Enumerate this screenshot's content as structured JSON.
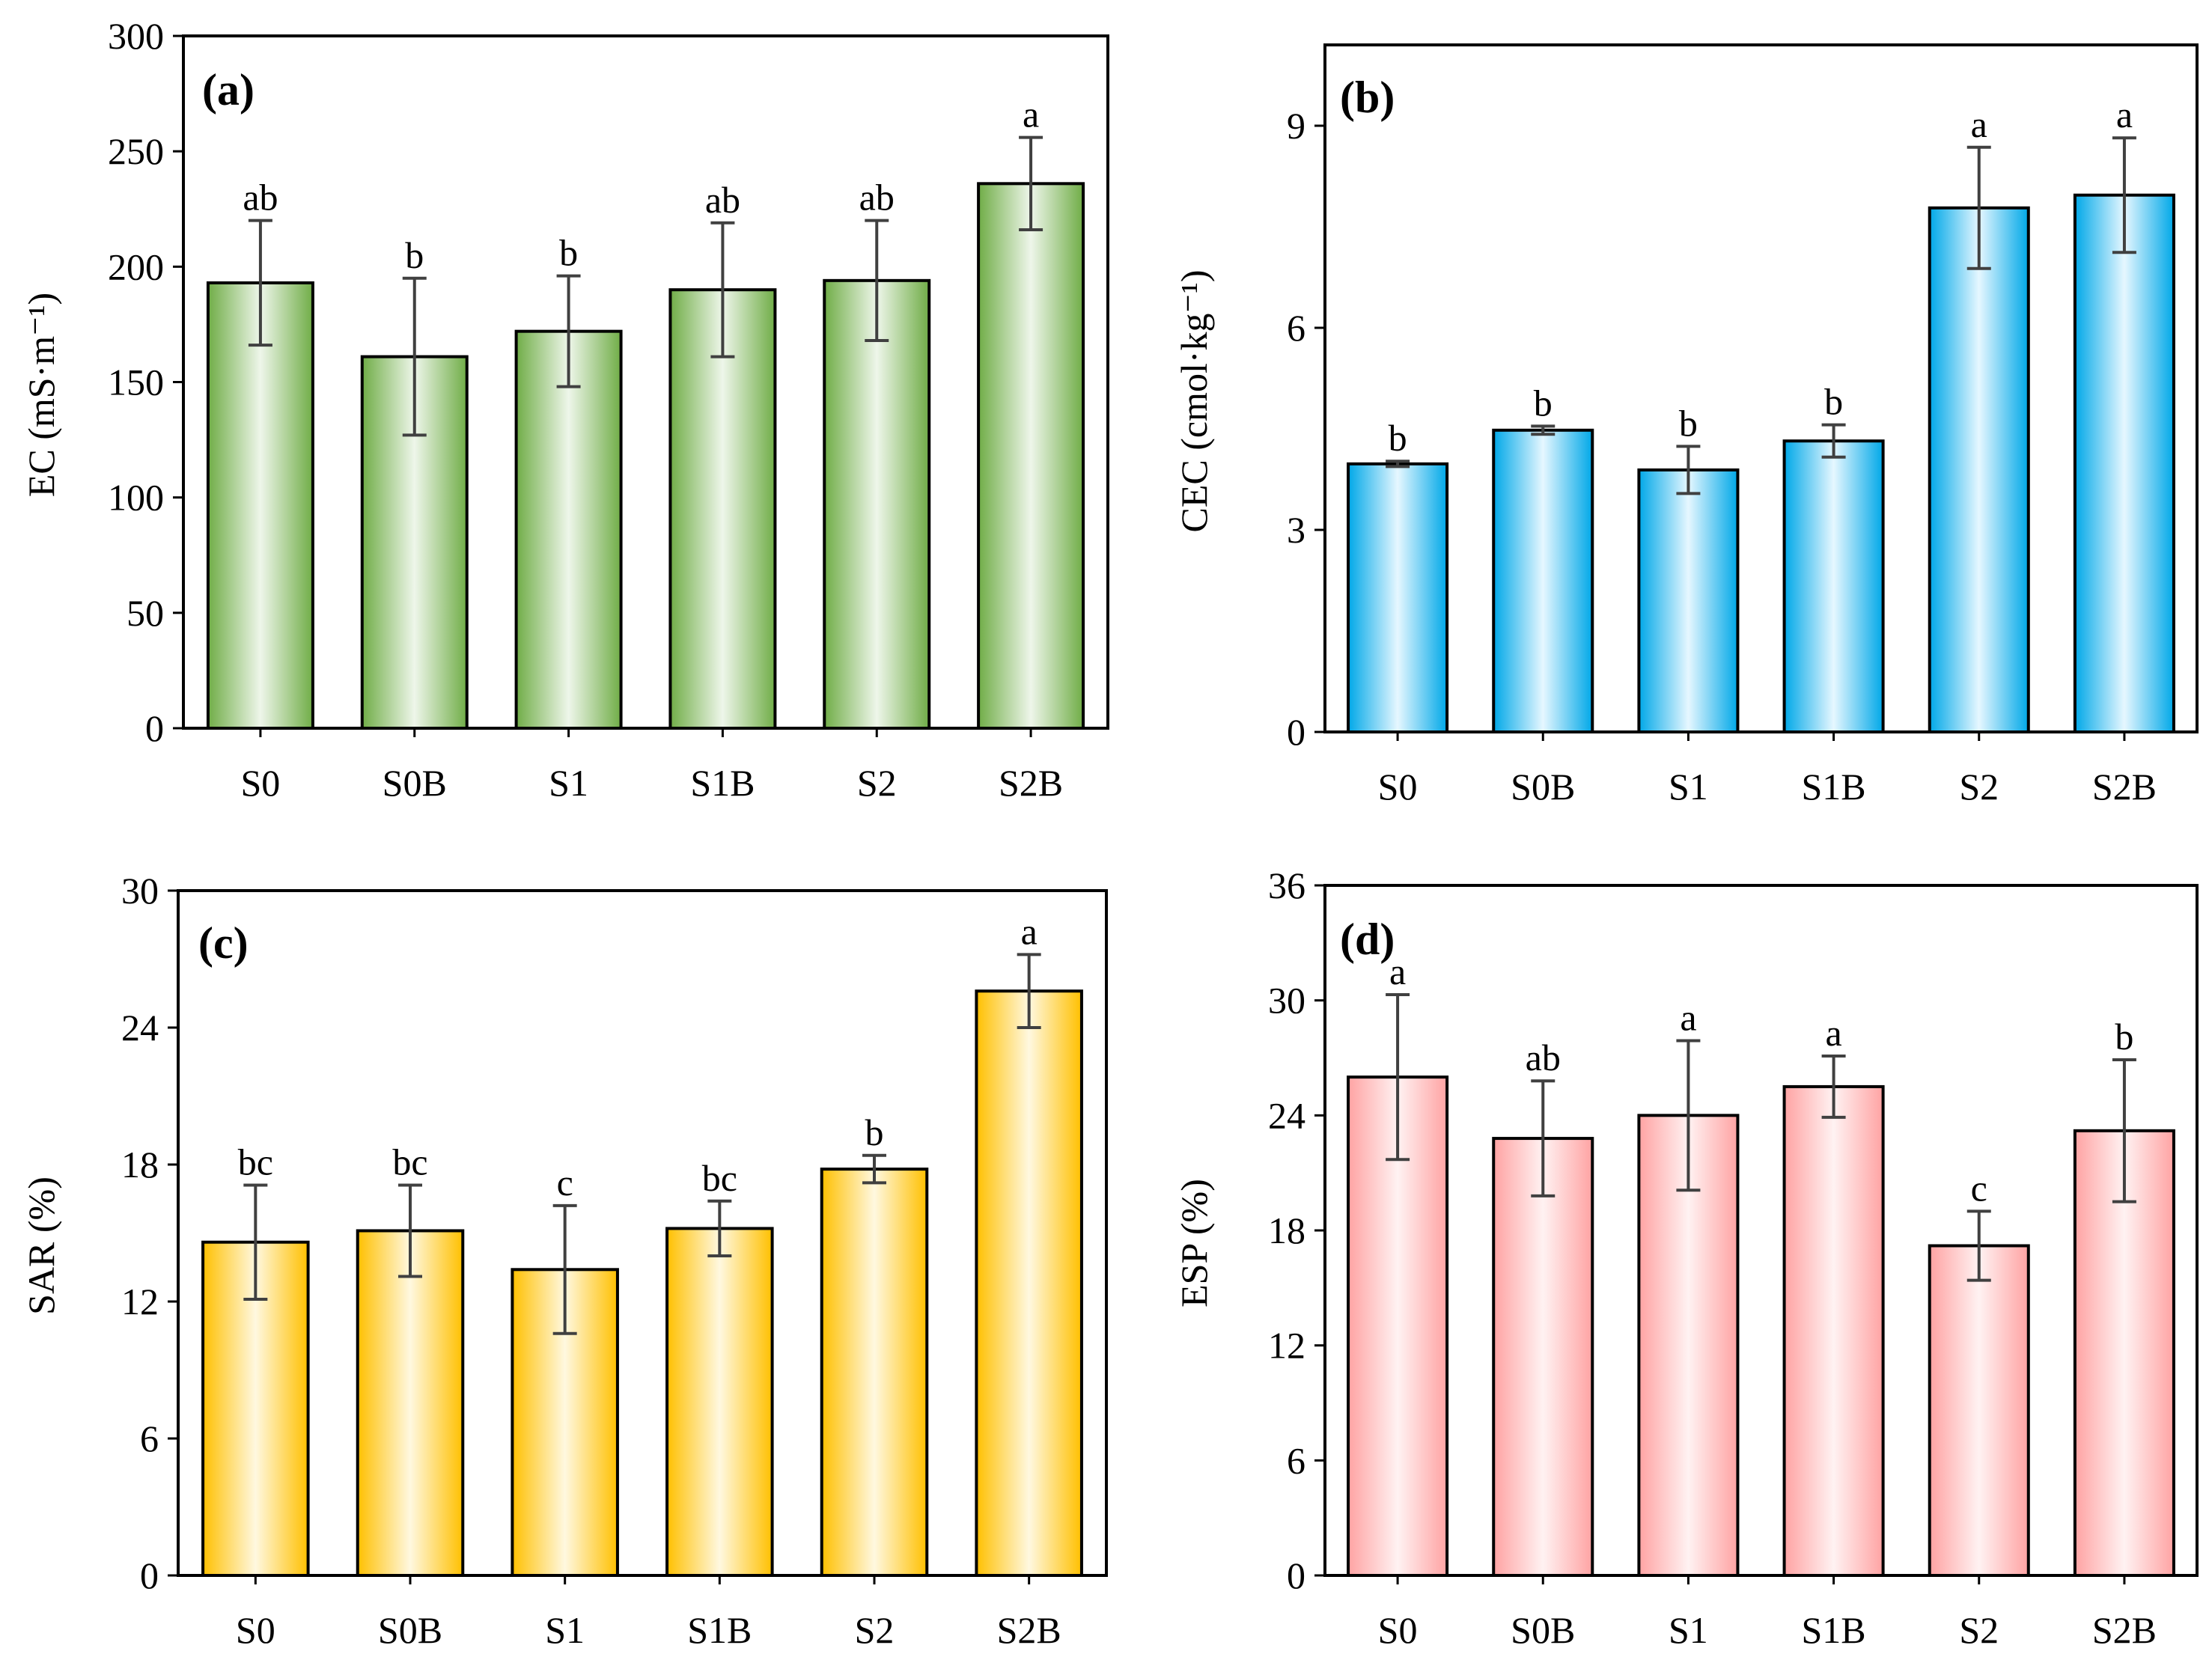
{
  "chart_data": [
    {
      "type": "bar",
      "panel_label": "(a)",
      "ylabel": "EC (mS·m⁻¹)",
      "categories": [
        "S0",
        "S0B",
        "S1",
        "S1B",
        "S2",
        "S2B"
      ],
      "values": [
        193,
        161,
        172,
        190,
        194,
        236
      ],
      "errors": [
        27,
        34,
        24,
        29,
        26,
        20
      ],
      "significance": [
        "ab",
        "b",
        "b",
        "ab",
        "ab",
        "a"
      ],
      "ylim": [
        0,
        300
      ],
      "yticks": [
        0,
        50,
        100,
        150,
        200,
        250,
        300
      ],
      "color": "#70AD47"
    },
    {
      "type": "bar",
      "panel_label": "(b)",
      "ylabel": "CEC (cmol·kg⁻¹)",
      "categories": [
        "S0",
        "S0B",
        "S1",
        "S1B",
        "S2",
        "S2B"
      ],
      "values": [
        3.98,
        4.48,
        3.89,
        4.32,
        7.78,
        7.97
      ],
      "errors": [
        0.04,
        0.06,
        0.35,
        0.24,
        0.9,
        0.85
      ],
      "significance": [
        "b",
        "b",
        "b",
        "b",
        "a",
        "a"
      ],
      "ylim": [
        0,
        10.2
      ],
      "yticks": [
        0,
        3,
        6,
        9
      ],
      "color": "#00B0F0"
    },
    {
      "type": "bar",
      "panel_label": "(c)",
      "ylabel": "SAR (%)",
      "categories": [
        "S0",
        "S0B",
        "S1",
        "S1B",
        "S2",
        "S2B"
      ],
      "values": [
        14.6,
        15.1,
        13.4,
        15.2,
        17.8,
        25.6
      ],
      "errors": [
        2.5,
        2.0,
        2.8,
        1.2,
        0.6,
        1.6
      ],
      "significance": [
        "bc",
        "bc",
        "c",
        "bc",
        "b",
        "a"
      ],
      "ylim": [
        0,
        30
      ],
      "yticks": [
        0,
        6,
        12,
        18,
        24,
        30
      ],
      "color": "#FFC000"
    },
    {
      "type": "bar",
      "panel_label": "(d)",
      "ylabel": "ESP (%)",
      "categories": [
        "S0",
        "S0B",
        "S1",
        "S1B",
        "S2",
        "S2B"
      ],
      "values": [
        26.0,
        22.8,
        24.0,
        25.5,
        17.2,
        23.2
      ],
      "errors": [
        4.3,
        3.0,
        3.9,
        1.6,
        1.8,
        3.7
      ],
      "significance": [
        "a",
        "ab",
        "a",
        "a",
        "c",
        "b"
      ],
      "ylim": [
        0,
        36
      ],
      "yticks": [
        0,
        6,
        12,
        18,
        24,
        30,
        36
      ],
      "color": "#FF9999"
    }
  ]
}
